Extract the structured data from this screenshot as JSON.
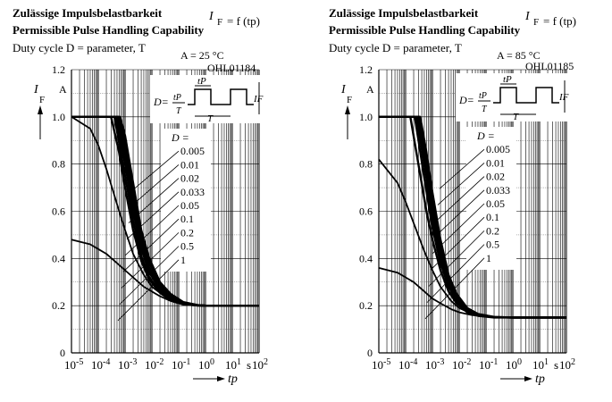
{
  "charts": [
    {
      "title_de": "Zulässige Impulsbelastbarkeit",
      "title_en": "Permissible Pulse Handling Capability",
      "formula_main": "I",
      "formula_sub": "F",
      "formula_rest": "= f (tp)",
      "duty_text": "Duty cycle D = parameter, T",
      "temp_label": "A = 25 °C",
      "code": "OHL01184",
      "ylabel_main": "I",
      "ylabel_sub": "F",
      "yunit": "A",
      "xlabel": "tp",
      "xunit": "s",
      "legend_title": "D =",
      "inset_formula_left": "D=",
      "inset_formula_num": "tP",
      "inset_formula_den": "T",
      "inset_tp": "tP",
      "inset_T": "T",
      "inset_IF": "IF"
    },
    {
      "title_de": "Zulässige Impulsbelastbarkeit",
      "title_en": "Permissible Pulse Handling Capability",
      "formula_main": "I",
      "formula_sub": "F",
      "formula_rest": "= f (tp)",
      "duty_text": "Duty cycle D = parameter, T",
      "temp_label": "A = 85 °C",
      "code": "OHL01185",
      "ylabel_main": "I",
      "ylabel_sub": "F",
      "yunit": "A",
      "xlabel": "tp",
      "xunit": "s",
      "legend_title": "D =",
      "inset_formula_left": "D=",
      "inset_formula_num": "tP",
      "inset_formula_den": "T",
      "inset_tp": "tP",
      "inset_T": "T",
      "inset_IF": "IF"
    }
  ],
  "chart_data": [
    {
      "type": "line",
      "title": "Permissible Pulse Handling Capability",
      "xlabel": "tp",
      "ylabel": "IF",
      "x_scale": "log",
      "xlim": [
        1e-05,
        100
      ],
      "ylim": [
        0,
        1.2
      ],
      "x_ticks": [
        "10-5",
        "10-4",
        "10-3",
        "10-2",
        "10-1",
        "100",
        "101",
        "102"
      ],
      "y_ticks": [
        "0",
        "0.2",
        "0.4",
        "0.6",
        "0.8",
        "1.0",
        "1.2"
      ],
      "grid": true,
      "series": [
        {
          "name": "0.005",
          "points": [
            [
              1e-05,
              1.0
            ],
            [
              0.00065,
              1.0
            ],
            [
              0.001,
              0.92
            ],
            [
              0.002,
              0.72
            ],
            [
              0.004,
              0.52
            ],
            [
              0.008,
              0.4
            ],
            [
              0.02,
              0.3
            ],
            [
              0.05,
              0.25
            ],
            [
              0.15,
              0.215
            ],
            [
              0.5,
              0.203
            ],
            [
              1,
              0.2
            ],
            [
              100,
              0.2
            ]
          ]
        },
        {
          "name": "0.01",
          "points": [
            [
              1e-05,
              1.0
            ],
            [
              0.0006,
              1.0
            ],
            [
              0.001,
              0.9
            ],
            [
              0.002,
              0.7
            ],
            [
              0.004,
              0.5
            ],
            [
              0.008,
              0.38
            ],
            [
              0.02,
              0.29
            ],
            [
              0.05,
              0.245
            ],
            [
              0.15,
              0.213
            ],
            [
              0.5,
              0.202
            ],
            [
              1,
              0.2
            ],
            [
              100,
              0.2
            ]
          ]
        },
        {
          "name": "0.02",
          "points": [
            [
              1e-05,
              1.0
            ],
            [
              0.00055,
              1.0
            ],
            [
              0.001,
              0.87
            ],
            [
              0.002,
              0.67
            ],
            [
              0.004,
              0.48
            ],
            [
              0.008,
              0.36
            ],
            [
              0.02,
              0.28
            ],
            [
              0.05,
              0.24
            ],
            [
              0.15,
              0.212
            ],
            [
              0.5,
              0.202
            ],
            [
              1,
              0.2
            ],
            [
              100,
              0.2
            ]
          ]
        },
        {
          "name": "0.033",
          "points": [
            [
              1e-05,
              1.0
            ],
            [
              0.0005,
              1.0
            ],
            [
              0.001,
              0.84
            ],
            [
              0.002,
              0.64
            ],
            [
              0.004,
              0.46
            ],
            [
              0.008,
              0.35
            ],
            [
              0.02,
              0.275
            ],
            [
              0.05,
              0.235
            ],
            [
              0.15,
              0.21
            ],
            [
              0.5,
              0.202
            ],
            [
              1,
              0.2
            ],
            [
              100,
              0.2
            ]
          ]
        },
        {
          "name": "0.05",
          "points": [
            [
              1e-05,
              1.0
            ],
            [
              0.00045,
              1.0
            ],
            [
              0.001,
              0.8
            ],
            [
              0.002,
              0.6
            ],
            [
              0.004,
              0.44
            ],
            [
              0.008,
              0.34
            ],
            [
              0.02,
              0.27
            ],
            [
              0.05,
              0.23
            ],
            [
              0.15,
              0.208
            ],
            [
              0.5,
              0.201
            ],
            [
              1,
              0.2
            ],
            [
              100,
              0.2
            ]
          ]
        },
        {
          "name": "0.1",
          "points": [
            [
              1e-05,
              1.0
            ],
            [
              0.0004,
              1.0
            ],
            [
              0.001,
              0.75
            ],
            [
              0.002,
              0.56
            ],
            [
              0.004,
              0.41
            ],
            [
              0.008,
              0.32
            ],
            [
              0.02,
              0.26
            ],
            [
              0.05,
              0.225
            ],
            [
              0.15,
              0.206
            ],
            [
              0.5,
              0.201
            ],
            [
              1,
              0.2
            ],
            [
              100,
              0.2
            ]
          ]
        },
        {
          "name": "0.2",
          "points": [
            [
              1e-05,
              1.0
            ],
            [
              0.0003,
              1.0
            ],
            [
              0.0006,
              0.85
            ],
            [
              0.001,
              0.7
            ],
            [
              0.002,
              0.52
            ],
            [
              0.004,
              0.39
            ],
            [
              0.008,
              0.31
            ],
            [
              0.02,
              0.255
            ],
            [
              0.05,
              0.222
            ],
            [
              0.15,
              0.205
            ],
            [
              0.5,
              0.201
            ],
            [
              1,
              0.2
            ],
            [
              100,
              0.2
            ]
          ]
        },
        {
          "name": "0.5",
          "points": [
            [
              1e-05,
              1.0
            ],
            [
              5e-05,
              0.95
            ],
            [
              0.0001,
              0.88
            ],
            [
              0.0002,
              0.78
            ],
            [
              0.0005,
              0.63
            ],
            [
              0.001,
              0.52
            ],
            [
              0.002,
              0.42
            ],
            [
              0.005,
              0.33
            ],
            [
              0.01,
              0.28
            ],
            [
              0.03,
              0.24
            ],
            [
              0.1,
              0.215
            ],
            [
              0.3,
              0.205
            ],
            [
              1,
              0.2
            ],
            [
              100,
              0.2
            ]
          ]
        },
        {
          "name": "1",
          "points": [
            [
              1e-05,
              0.48
            ],
            [
              5e-05,
              0.46
            ],
            [
              0.0001,
              0.44
            ],
            [
              0.0002,
              0.42
            ],
            [
              0.0005,
              0.38
            ],
            [
              0.001,
              0.35
            ],
            [
              0.002,
              0.32
            ],
            [
              0.005,
              0.28
            ],
            [
              0.01,
              0.26
            ],
            [
              0.02,
              0.24
            ],
            [
              0.05,
              0.22
            ],
            [
              0.1,
              0.21
            ],
            [
              0.3,
              0.203
            ],
            [
              1,
              0.2
            ],
            [
              100,
              0.2
            ]
          ]
        }
      ]
    },
    {
      "type": "line",
      "title": "Permissible Pulse Handling Capability",
      "xlabel": "tp",
      "ylabel": "IF",
      "x_scale": "log",
      "xlim": [
        1e-05,
        100
      ],
      "ylim": [
        0,
        1.2
      ],
      "x_ticks": [
        "10-5",
        "10-4",
        "10-3",
        "10-2",
        "10-1",
        "100",
        "101",
        "102"
      ],
      "y_ticks": [
        "0",
        "0.2",
        "0.4",
        "0.6",
        "0.8",
        "1.0",
        "1.2"
      ],
      "grid": true,
      "series": [
        {
          "name": "0.005",
          "points": [
            [
              1e-05,
              1.0
            ],
            [
              0.00035,
              1.0
            ],
            [
              0.0006,
              0.85
            ],
            [
              0.001,
              0.68
            ],
            [
              0.002,
              0.48
            ],
            [
              0.004,
              0.33
            ],
            [
              0.008,
              0.25
            ],
            [
              0.02,
              0.19
            ],
            [
              0.05,
              0.165
            ],
            [
              0.2,
              0.152
            ],
            [
              1,
              0.15
            ],
            [
              100,
              0.15
            ]
          ]
        },
        {
          "name": "0.01",
          "points": [
            [
              1e-05,
              1.0
            ],
            [
              0.00033,
              1.0
            ],
            [
              0.0006,
              0.83
            ],
            [
              0.001,
              0.66
            ],
            [
              0.002,
              0.46
            ],
            [
              0.004,
              0.32
            ],
            [
              0.008,
              0.245
            ],
            [
              0.02,
              0.188
            ],
            [
              0.05,
              0.163
            ],
            [
              0.2,
              0.152
            ],
            [
              1,
              0.15
            ],
            [
              100,
              0.15
            ]
          ]
        },
        {
          "name": "0.02",
          "points": [
            [
              1e-05,
              1.0
            ],
            [
              0.0003,
              1.0
            ],
            [
              0.0006,
              0.8
            ],
            [
              0.001,
              0.63
            ],
            [
              0.002,
              0.44
            ],
            [
              0.004,
              0.31
            ],
            [
              0.008,
              0.24
            ],
            [
              0.02,
              0.185
            ],
            [
              0.05,
              0.162
            ],
            [
              0.2,
              0.151
            ],
            [
              1,
              0.15
            ],
            [
              100,
              0.15
            ]
          ]
        },
        {
          "name": "0.033",
          "points": [
            [
              1e-05,
              1.0
            ],
            [
              0.00028,
              1.0
            ],
            [
              0.0006,
              0.77
            ],
            [
              0.001,
              0.6
            ],
            [
              0.002,
              0.42
            ],
            [
              0.004,
              0.3
            ],
            [
              0.008,
              0.235
            ],
            [
              0.02,
              0.182
            ],
            [
              0.05,
              0.161
            ],
            [
              0.2,
              0.151
            ],
            [
              1,
              0.15
            ],
            [
              100,
              0.15
            ]
          ]
        },
        {
          "name": "0.05",
          "points": [
            [
              1e-05,
              1.0
            ],
            [
              0.00026,
              1.0
            ],
            [
              0.0006,
              0.74
            ],
            [
              0.001,
              0.57
            ],
            [
              0.002,
              0.4
            ],
            [
              0.004,
              0.29
            ],
            [
              0.008,
              0.23
            ],
            [
              0.02,
              0.18
            ],
            [
              0.05,
              0.16
            ],
            [
              0.2,
              0.151
            ],
            [
              1,
              0.15
            ],
            [
              100,
              0.15
            ]
          ]
        },
        {
          "name": "0.1",
          "points": [
            [
              1e-05,
              1.0
            ],
            [
              0.00022,
              1.0
            ],
            [
              0.0005,
              0.74
            ],
            [
              0.001,
              0.53
            ],
            [
              0.002,
              0.38
            ],
            [
              0.004,
              0.28
            ],
            [
              0.008,
              0.22
            ],
            [
              0.02,
              0.177
            ],
            [
              0.05,
              0.158
            ],
            [
              0.2,
              0.151
            ],
            [
              1,
              0.15
            ],
            [
              100,
              0.15
            ]
          ]
        },
        {
          "name": "0.2",
          "points": [
            [
              1e-05,
              1.0
            ],
            [
              0.00015,
              1.0
            ],
            [
              0.0003,
              0.8
            ],
            [
              0.0006,
              0.6
            ],
            [
              0.001,
              0.48
            ],
            [
              0.002,
              0.35
            ],
            [
              0.004,
              0.26
            ],
            [
              0.008,
              0.21
            ],
            [
              0.02,
              0.172
            ],
            [
              0.05,
              0.157
            ],
            [
              0.2,
              0.15
            ],
            [
              1,
              0.15
            ],
            [
              100,
              0.15
            ]
          ]
        },
        {
          "name": "0.5",
          "points": [
            [
              1e-05,
              0.82
            ],
            [
              5e-05,
              0.72
            ],
            [
              0.0001,
              0.64
            ],
            [
              0.0002,
              0.55
            ],
            [
              0.0005,
              0.43
            ],
            [
              0.001,
              0.35
            ],
            [
              0.002,
              0.28
            ],
            [
              0.005,
              0.22
            ],
            [
              0.01,
              0.19
            ],
            [
              0.03,
              0.165
            ],
            [
              0.1,
              0.155
            ],
            [
              0.3,
              0.151
            ],
            [
              1,
              0.15
            ],
            [
              100,
              0.15
            ]
          ]
        },
        {
          "name": "1",
          "points": [
            [
              1e-05,
              0.36
            ],
            [
              5e-05,
              0.34
            ],
            [
              0.0001,
              0.32
            ],
            [
              0.0002,
              0.3
            ],
            [
              0.0005,
              0.26
            ],
            [
              0.001,
              0.23
            ],
            [
              0.002,
              0.21
            ],
            [
              0.005,
              0.185
            ],
            [
              0.01,
              0.172
            ],
            [
              0.03,
              0.16
            ],
            [
              0.1,
              0.154
            ],
            [
              0.3,
              0.151
            ],
            [
              1,
              0.15
            ],
            [
              100,
              0.15
            ]
          ]
        }
      ]
    }
  ]
}
